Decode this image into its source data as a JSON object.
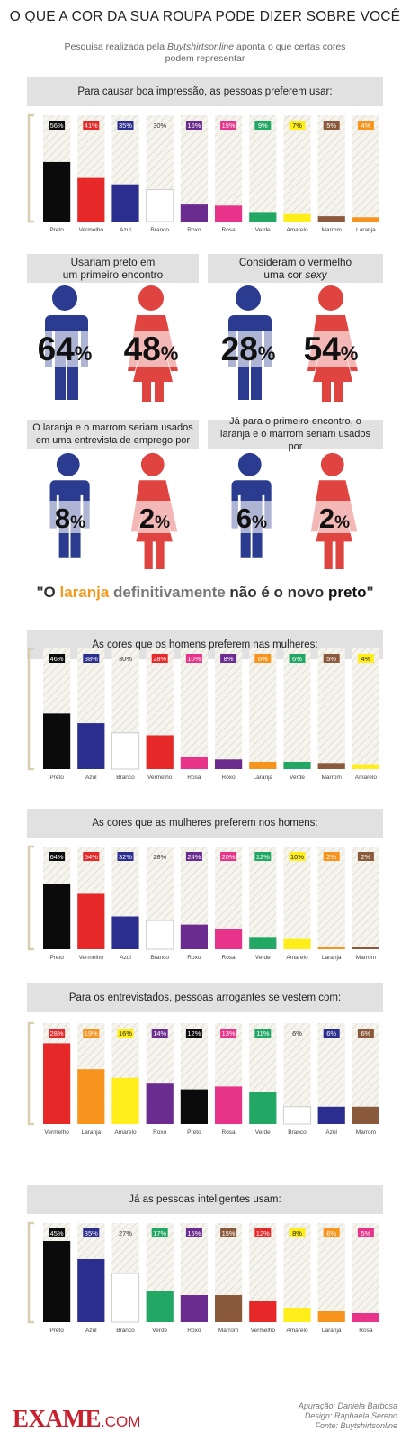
{
  "title": "O QUE A COR DA SUA ROUPA PODE DIZER SOBRE VOCÊ",
  "subtitle_pre": "Pesquisa realizada pela ",
  "subtitle_source": "Buytshirtsonline",
  "subtitle_post": " aponta o que certas cores podem representar",
  "colors": {
    "Preto": "#0b0b0b",
    "Vermelho": "#e62828",
    "Azul": "#2b2e8e",
    "Branco": "#ffffff",
    "Roxo": "#6a2c8e",
    "Rosa": "#e8338a",
    "Verde": "#23a765",
    "Amarelo": "#ffee1a",
    "Marrom": "#8b5a3c",
    "Laranja": "#f7941d",
    "male": "#2b3b8f",
    "female": "#e04440"
  },
  "chart_data": [
    {
      "type": "bar",
      "title": "Para causar boa impressão, as pessoas preferem usar:",
      "categories": [
        "Preto",
        "Vermelho",
        "Azul",
        "Branco",
        "Roxo",
        "Rosa",
        "Verde",
        "Amarelo",
        "Marrom",
        "Laranja"
      ],
      "values": [
        56,
        41,
        35,
        30,
        16,
        15,
        9,
        7,
        5,
        4
      ],
      "labels": [
        "56%",
        "41%",
        "35%",
        "30%",
        "16%",
        "15%",
        "9%",
        "7%",
        "5%",
        "4%"
      ],
      "ylim": [
        0,
        100
      ]
    },
    {
      "type": "bar",
      "title": "As cores que os homens preferem nas mulheres:",
      "categories": [
        "Preto",
        "Azul",
        "Branco",
        "Vermelho",
        "Rosa",
        "Roxo",
        "Laranja",
        "Verde",
        "Marrom",
        "Amarelo"
      ],
      "values": [
        46,
        38,
        30,
        28,
        10,
        8,
        6,
        6,
        5,
        4
      ],
      "labels": [
        "46%",
        "38%",
        "30%",
        "28%",
        "10%",
        "8%",
        "6%",
        "6%",
        "5%",
        "4%"
      ],
      "ylim": [
        0,
        100
      ]
    },
    {
      "type": "bar",
      "title": "As cores que as mulheres preferem nos homens:",
      "categories": [
        "Preto",
        "Vermelho",
        "Azul",
        "Branco",
        "Roxo",
        "Rosa",
        "Verde",
        "Amarelo",
        "Laranja",
        "Marrom"
      ],
      "values": [
        64,
        54,
        32,
        28,
        24,
        20,
        12,
        10,
        2,
        2
      ],
      "labels": [
        "64%",
        "54%",
        "32%",
        "28%",
        "24%",
        "20%",
        "12%",
        "10%",
        "2%",
        "2%"
      ],
      "ylim": [
        0,
        100
      ]
    },
    {
      "type": "bar",
      "title": "Para os entrevistados, pessoas arrogantes se vestem com:",
      "categories": [
        "Vermelho",
        "Laranja",
        "Amarelo",
        "Roxo",
        "Preto",
        "Rosa",
        "Verde",
        "Branco",
        "Azul",
        "Marrom"
      ],
      "values": [
        28,
        19,
        16,
        14,
        12,
        13,
        11,
        6,
        6,
        6
      ],
      "labels": [
        "28%",
        "19%",
        "16%",
        "14%",
        "12%",
        "13%",
        "11%",
        "6%",
        "6%",
        "6%"
      ],
      "ylim": [
        0,
        35
      ]
    },
    {
      "type": "bar",
      "title": "Já as pessoas inteligentes usam:",
      "categories": [
        "Preto",
        "Azul",
        "Branco",
        "Verde",
        "Roxo",
        "Marrom",
        "Vermelho",
        "Amarelo",
        "Laranja",
        "Rosa"
      ],
      "values": [
        45,
        35,
        27,
        17,
        15,
        15,
        12,
        8,
        6,
        5
      ],
      "labels": [
        "45%",
        "35%",
        "27%",
        "17%",
        "15%",
        "15%",
        "12%",
        "8%",
        "6%",
        "5%"
      ],
      "ylim": [
        0,
        55
      ]
    }
  ],
  "stats": [
    {
      "title_line1": "Usariam preto em",
      "title_line2": "um primeiro encontro",
      "male_color": "Azul",
      "female_color": "Vermelho",
      "male": 64,
      "female": 48,
      "male_text": "64",
      "female_text": "48",
      "sym": "%"
    },
    {
      "title_line1": "Consideram o vermelho",
      "title_line2": "uma cor ",
      "title_em": "sexy",
      "male_color": "Azul",
      "female_color": "Vermelho",
      "male": 28,
      "female": 54,
      "male_text": "28",
      "female_text": "54",
      "sym": "%"
    },
    {
      "title_line1": "O laranja e o marrom seriam usados",
      "title_line2": "em uma entrevista de emprego por",
      "male": 8,
      "female": 2,
      "male_text": "8",
      "female_text": "2",
      "sym": "%"
    },
    {
      "title_line1": "Já para o primeiro encontro, o",
      "title_line2": "laranja e o marrom seriam usados por",
      "male": 6,
      "female": 2,
      "male_text": "6",
      "female_text": "2",
      "sym": "%"
    }
  ],
  "quote": {
    "open": "\"O ",
    "laranja": "laranja",
    "middle": " definitivamente ",
    "nao": "não é o novo ",
    "preto": "preto",
    "close": "\""
  },
  "footer": {
    "logo": "EXAME",
    "logo_suffix": ".COM",
    "credit_1": "Apuração: Daniela Barbosa",
    "credit_2": "Design: Raphaela Sereno",
    "credit_3": "Fonte: Buytshirtsonline"
  }
}
